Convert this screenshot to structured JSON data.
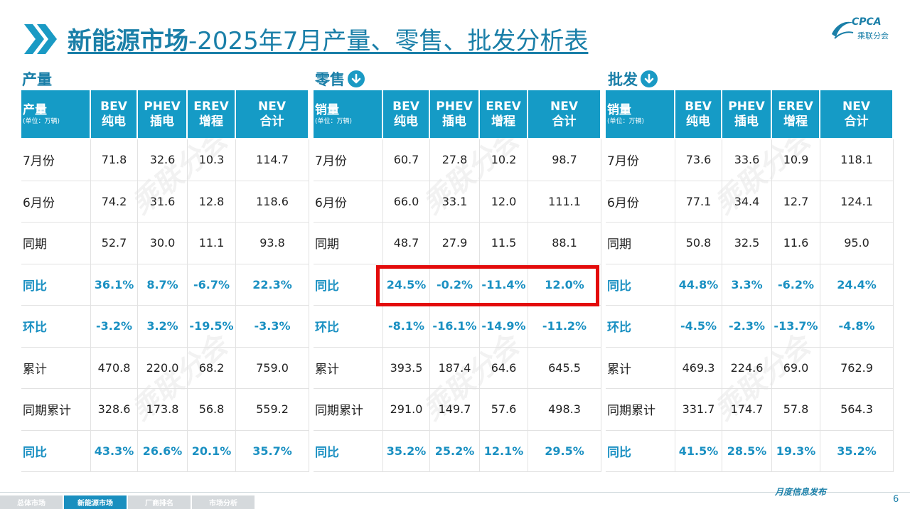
{
  "title": {
    "main": "新能源市场",
    "rest": "-2025年7月产量、零售、批发分析表"
  },
  "logo": {
    "text": "CPCA",
    "sub": "乘联分会"
  },
  "watermark_text": "乘联分会",
  "colors": {
    "accent": "#1a9ac4",
    "highlight": "#e30b0b"
  },
  "sections": [
    {
      "label": "产量",
      "has_arrow": false,
      "header": {
        "first": "产量",
        "unit": "(单位：万辆)",
        "cols": [
          [
            "BEV",
            "纯电"
          ],
          [
            "PHEV",
            "插电"
          ],
          [
            "EREV",
            "增程"
          ],
          [
            "NEV",
            "合计"
          ]
        ]
      },
      "rows": [
        {
          "label": "7月份",
          "values": [
            "71.8",
            "32.6",
            "10.3",
            "114.7"
          ],
          "highlight": false
        },
        {
          "label": "6月份",
          "values": [
            "74.2",
            "31.6",
            "12.8",
            "118.6"
          ],
          "highlight": false
        },
        {
          "label": "同期",
          "values": [
            "52.7",
            "30.0",
            "11.1",
            "93.8"
          ],
          "highlight": false
        },
        {
          "label": "同比",
          "values": [
            "36.1%",
            "8.7%",
            "-6.7%",
            "22.3%"
          ],
          "highlight": true
        },
        {
          "label": "环比",
          "values": [
            "-3.2%",
            "3.2%",
            "-19.5%",
            "-3.3%"
          ],
          "highlight": true
        },
        {
          "label": "累计",
          "values": [
            "470.8",
            "220.0",
            "68.2",
            "759.0"
          ],
          "highlight": false
        },
        {
          "label": "同期累计",
          "values": [
            "328.6",
            "173.8",
            "56.8",
            "559.2"
          ],
          "highlight": false
        },
        {
          "label": "同比",
          "values": [
            "43.3%",
            "26.6%",
            "20.1%",
            "35.7%"
          ],
          "highlight": true
        }
      ]
    },
    {
      "label": "零售",
      "has_arrow": true,
      "header": {
        "first": "销量",
        "unit": "(单位：万辆)",
        "cols": [
          [
            "BEV",
            "纯电"
          ],
          [
            "PHEV",
            "插电"
          ],
          [
            "EREV",
            "增程"
          ],
          [
            "NEV",
            "合计"
          ]
        ]
      },
      "rows": [
        {
          "label": "7月份",
          "values": [
            "60.7",
            "27.8",
            "10.2",
            "98.7"
          ],
          "highlight": false
        },
        {
          "label": "6月份",
          "values": [
            "66.0",
            "33.1",
            "12.0",
            "111.1"
          ],
          "highlight": false
        },
        {
          "label": "同期",
          "values": [
            "48.7",
            "27.9",
            "11.5",
            "88.1"
          ],
          "highlight": false
        },
        {
          "label": "同比",
          "values": [
            "24.5%",
            "-0.2%",
            "-11.4%",
            "12.0%"
          ],
          "highlight": true
        },
        {
          "label": "环比",
          "values": [
            "-8.1%",
            "-16.1%",
            "-14.9%",
            "-11.2%"
          ],
          "highlight": true
        },
        {
          "label": "累计",
          "values": [
            "393.5",
            "187.4",
            "64.6",
            "645.5"
          ],
          "highlight": false
        },
        {
          "label": "同期累计",
          "values": [
            "291.0",
            "149.7",
            "57.6",
            "498.3"
          ],
          "highlight": false
        },
        {
          "label": "同比",
          "values": [
            "35.2%",
            "25.2%",
            "12.1%",
            "29.5%"
          ],
          "highlight": true
        }
      ]
    },
    {
      "label": "批发",
      "has_arrow": true,
      "header": {
        "first": "销量",
        "unit": "(单位：万辆)",
        "cols": [
          [
            "BEV",
            "纯电"
          ],
          [
            "PHEV",
            "插电"
          ],
          [
            "EREV",
            "增程"
          ],
          [
            "NEV",
            "合计"
          ]
        ]
      },
      "rows": [
        {
          "label": "7月份",
          "values": [
            "73.6",
            "33.6",
            "10.9",
            "118.1"
          ],
          "highlight": false
        },
        {
          "label": "6月份",
          "values": [
            "77.1",
            "34.4",
            "12.7",
            "124.1"
          ],
          "highlight": false
        },
        {
          "label": "同期",
          "values": [
            "50.8",
            "32.5",
            "11.6",
            "95.0"
          ],
          "highlight": false
        },
        {
          "label": "同比",
          "values": [
            "44.8%",
            "3.3%",
            "-6.2%",
            "24.4%"
          ],
          "highlight": true
        },
        {
          "label": "环比",
          "values": [
            "-4.5%",
            "-2.3%",
            "-13.7%",
            "-4.8%"
          ],
          "highlight": true
        },
        {
          "label": "累计",
          "values": [
            "469.3",
            "224.6",
            "69.0",
            "762.9"
          ],
          "highlight": false
        },
        {
          "label": "同期累计",
          "values": [
            "331.7",
            "174.7",
            "57.8",
            "564.3"
          ],
          "highlight": false
        },
        {
          "label": "同比",
          "values": [
            "41.5%",
            "28.5%",
            "19.3%",
            "35.2%"
          ],
          "highlight": true
        }
      ]
    }
  ],
  "nav": {
    "tabs": [
      "总体市场",
      "新能源市场",
      "厂商排名",
      "市场分析"
    ],
    "active": 1
  },
  "footer": {
    "text": "月度信息发布",
    "page": "6"
  }
}
